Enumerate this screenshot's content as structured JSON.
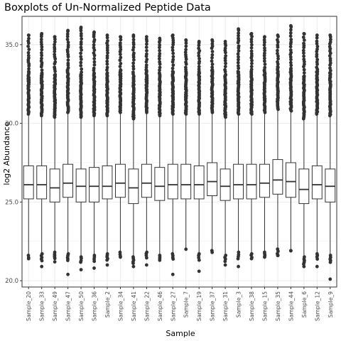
{
  "chart_data": {
    "type": "boxplot",
    "title": "Boxplots of Un-Normalized Peptide Data",
    "xlabel": "Sample",
    "ylabel": "log2 Abundance",
    "ylim": [
      19.6,
      36.8
    ],
    "yticks": [
      20,
      25,
      30,
      35
    ],
    "grid": true,
    "legend": "none",
    "colors": {
      "panel_border": "#333333",
      "grid": "#ebebeb",
      "box_fill": "#ffffff",
      "box_stroke": "#333333",
      "outlier": "#333333"
    },
    "categories": [
      "Sample_20",
      "Sample_33",
      "Sample_49",
      "Sample_47",
      "Sample_50",
      "Sample_36",
      "Sample_2",
      "Sample_34",
      "Sample_41",
      "Sample_22",
      "Sample_46",
      "Sample_27",
      "Sample_7",
      "Sample_19",
      "Sample_37",
      "Sample_31",
      "Sample_3",
      "Sample_38",
      "Sample_15",
      "Sample_35",
      "Sample_44",
      "Sample_6",
      "Sample_12",
      "Sample_9"
    ],
    "boxes": [
      {
        "min": 21.7,
        "q1": 25.2,
        "median": 26.1,
        "q3": 27.3,
        "max": 30.5,
        "outlier_top": 35.6,
        "outlier_bottom": 21.4
      },
      {
        "min": 21.8,
        "q1": 25.2,
        "median": 26.1,
        "q3": 27.3,
        "max": 30.4,
        "outlier_top": 35.7,
        "outlier_bottom": 20.9
      },
      {
        "min": 21.9,
        "q1": 25.0,
        "median": 25.9,
        "q3": 27.1,
        "max": 30.3,
        "outlier_top": 35.5,
        "outlier_bottom": 21.2
      },
      {
        "min": 21.8,
        "q1": 25.3,
        "median": 26.2,
        "q3": 27.4,
        "max": 30.6,
        "outlier_top": 35.9,
        "outlier_bottom": 20.4
      },
      {
        "min": 21.6,
        "q1": 25.0,
        "median": 26.0,
        "q3": 27.1,
        "max": 30.3,
        "outlier_top": 36.1,
        "outlier_bottom": 20.7
      },
      {
        "min": 21.7,
        "q1": 25.0,
        "median": 26.0,
        "q3": 27.2,
        "max": 30.4,
        "outlier_top": 35.8,
        "outlier_bottom": 20.8
      },
      {
        "min": 21.8,
        "q1": 25.2,
        "median": 26.0,
        "q3": 27.3,
        "max": 30.4,
        "outlier_top": 35.6,
        "outlier_bottom": 21.0
      },
      {
        "min": 21.9,
        "q1": 25.3,
        "median": 26.2,
        "q3": 27.4,
        "max": 30.6,
        "outlier_top": 35.5,
        "outlier_bottom": 21.5
      },
      {
        "min": 21.6,
        "q1": 24.9,
        "median": 25.9,
        "q3": 27.1,
        "max": 30.2,
        "outlier_top": 35.6,
        "outlier_bottom": 20.9
      },
      {
        "min": 21.9,
        "q1": 25.3,
        "median": 26.2,
        "q3": 27.4,
        "max": 30.6,
        "outlier_top": 35.5,
        "outlier_bottom": 21.0
      },
      {
        "min": 21.7,
        "q1": 25.1,
        "median": 26.0,
        "q3": 27.2,
        "max": 30.4,
        "outlier_top": 35.4,
        "outlier_bottom": 21.3
      },
      {
        "min": 21.8,
        "q1": 25.2,
        "median": 26.1,
        "q3": 27.4,
        "max": 30.5,
        "outlier_top": 35.6,
        "outlier_bottom": 20.4
      },
      {
        "min": 21.9,
        "q1": 25.2,
        "median": 26.1,
        "q3": 27.4,
        "max": 30.5,
        "outlier_top": 35.3,
        "outlier_bottom": 22.0
      },
      {
        "min": 21.8,
        "q1": 25.2,
        "median": 26.1,
        "q3": 27.3,
        "max": 30.5,
        "outlier_top": 35.2,
        "outlier_bottom": 20.6
      },
      {
        "min": 22.0,
        "q1": 25.4,
        "median": 26.3,
        "q3": 27.5,
        "max": 30.6,
        "outlier_top": 35.3,
        "outlier_bottom": 21.8
      },
      {
        "min": 21.7,
        "q1": 25.1,
        "median": 26.0,
        "q3": 27.1,
        "max": 30.3,
        "outlier_top": 35.2,
        "outlier_bottom": 21.0
      },
      {
        "min": 21.9,
        "q1": 25.2,
        "median": 26.1,
        "q3": 27.4,
        "max": 30.5,
        "outlier_top": 36.0,
        "outlier_bottom": 20.9
      },
      {
        "min": 21.8,
        "q1": 25.2,
        "median": 26.1,
        "q3": 27.4,
        "max": 30.5,
        "outlier_top": 35.7,
        "outlier_bottom": 21.4
      },
      {
        "min": 21.9,
        "q1": 25.3,
        "median": 26.2,
        "q3": 27.4,
        "max": 30.6,
        "outlier_top": 35.5,
        "outlier_bottom": 21.5
      },
      {
        "min": 22.1,
        "q1": 25.5,
        "median": 26.4,
        "q3": 27.7,
        "max": 30.8,
        "outlier_top": 35.6,
        "outlier_bottom": 21.6
      },
      {
        "min": 22.0,
        "q1": 25.3,
        "median": 26.3,
        "q3": 27.5,
        "max": 30.7,
        "outlier_top": 36.2,
        "outlier_bottom": 21.9
      },
      {
        "min": 21.6,
        "q1": 24.9,
        "median": 25.8,
        "q3": 27.1,
        "max": 30.2,
        "outlier_top": 35.7,
        "outlier_bottom": 20.9
      },
      {
        "min": 21.8,
        "q1": 25.2,
        "median": 26.1,
        "q3": 27.3,
        "max": 30.5,
        "outlier_top": 35.6,
        "outlier_bottom": 20.9
      },
      {
        "min": 21.7,
        "q1": 25.0,
        "median": 26.0,
        "q3": 27.1,
        "max": 30.4,
        "outlier_top": 35.6,
        "outlier_bottom": 20.1
      }
    ]
  }
}
